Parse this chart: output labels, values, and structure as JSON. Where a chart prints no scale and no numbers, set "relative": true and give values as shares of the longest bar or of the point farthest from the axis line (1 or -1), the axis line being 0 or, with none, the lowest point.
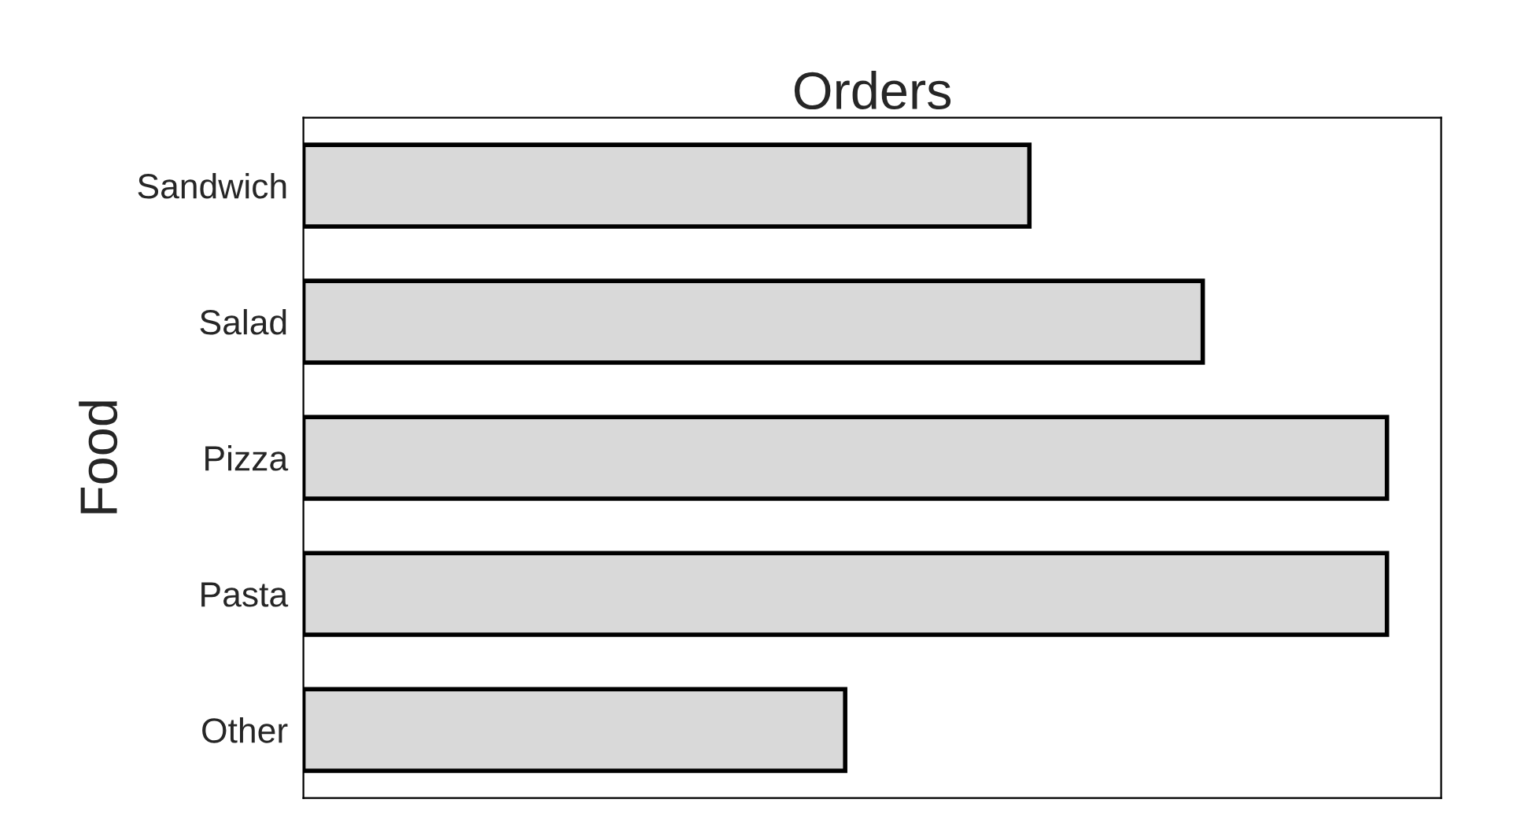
{
  "chart_data": {
    "type": "bar",
    "orientation": "horizontal",
    "relative": true,
    "xlabel": "Orders",
    "ylabel": "Food",
    "categories": [
      "Sandwich",
      "Salad",
      "Pizza",
      "Pasta",
      "Other"
    ],
    "values": [
      0.67,
      0.83,
      1,
      1,
      0.5
    ],
    "color": "#d9d9d9",
    "grid": false,
    "legend": false
  }
}
